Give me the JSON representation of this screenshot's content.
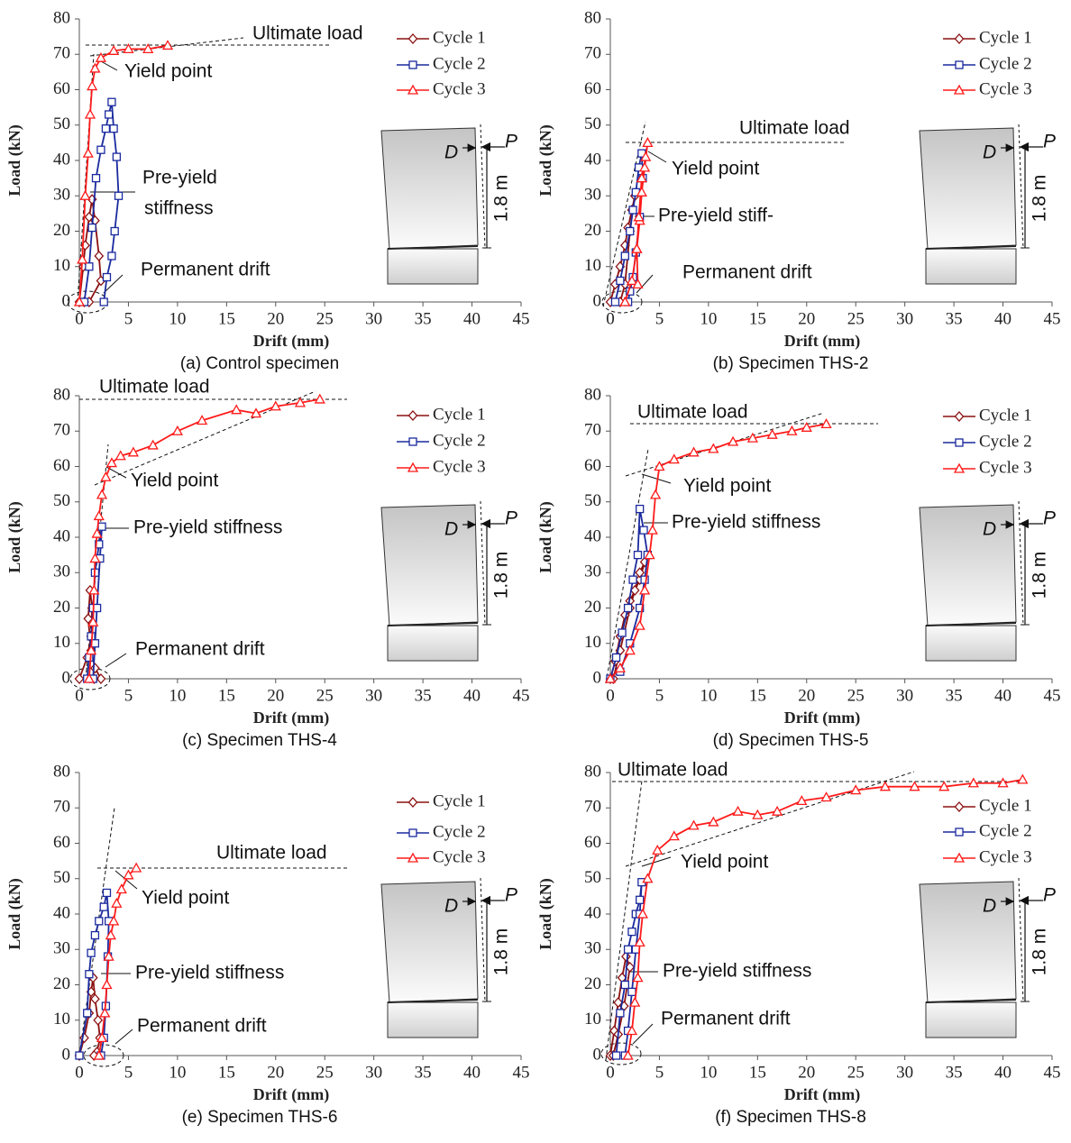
{
  "chart_data": [
    {
      "type": "line",
      "caption": "(a) Control specimen",
      "xlabel": "Drift (mm)",
      "ylabel": "Load (kN)",
      "xlim": [
        0,
        45
      ],
      "ylim": [
        0,
        80
      ],
      "xticks": [
        0,
        5,
        10,
        15,
        20,
        25,
        30,
        35,
        40,
        45
      ],
      "yticks": [
        0,
        10,
        20,
        30,
        40,
        50,
        60,
        70,
        80
      ],
      "series": [
        {
          "name": "Cycle 1",
          "color": "#8b1010",
          "marker": "diamond",
          "x": [
            0,
            0.4,
            0.6,
            1.0,
            1.3,
            1.6,
            2.0,
            2.2,
            1.0,
            0.5
          ],
          "values": [
            0,
            10,
            16,
            24,
            29,
            23,
            13,
            6,
            0,
            0
          ]
        },
        {
          "name": "Cycle 2",
          "color": "#1a2a9e",
          "marker": "square",
          "x": [
            0.5,
            1.0,
            1.3,
            1.7,
            2.2,
            2.7,
            3.0,
            3.3,
            3.5,
            3.8,
            4.0,
            3.6,
            3.3,
            2.8,
            2.5
          ],
          "values": [
            0,
            10,
            21,
            35,
            43,
            49,
            53,
            56.5,
            49,
            41,
            30,
            20,
            13,
            7,
            0
          ]
        },
        {
          "name": "Cycle 3",
          "color": "#ff1a1a",
          "marker": "triangle",
          "x": [
            0,
            0.3,
            0.6,
            0.9,
            1.1,
            1.3,
            1.6,
            2.2,
            3.5,
            5,
            7,
            9
          ],
          "values": [
            0,
            12,
            30,
            42,
            53,
            61,
            66,
            69,
            71,
            71.5,
            71.5,
            72.5
          ]
        }
      ],
      "annotations": [
        "Ultimate load",
        "Yield point",
        "Pre-yield",
        "stiffness",
        "Permanent drift"
      ],
      "diagram": {
        "displacement": "D",
        "load": "P",
        "height": "1.8 m"
      }
    },
    {
      "type": "line",
      "caption": "(b) Specimen THS-2",
      "xlabel": "Drift (mm)",
      "ylabel": "Load (kN)",
      "xlim": [
        0,
        45
      ],
      "ylim": [
        0,
        80
      ],
      "xticks": [
        0,
        5,
        10,
        15,
        20,
        25,
        30,
        35,
        40,
        45
      ],
      "yticks": [
        0,
        10,
        20,
        30,
        40,
        50,
        60,
        70,
        80
      ],
      "series": [
        {
          "name": "Cycle 1",
          "color": "#8b1010",
          "marker": "diamond",
          "x": [
            0,
            0.5,
            1.0,
            1.5,
            1.8,
            2.2,
            2.5,
            2.0,
            1.5,
            1.0
          ],
          "values": [
            0,
            5,
            10,
            16,
            21,
            26,
            30,
            20,
            5,
            0
          ]
        },
        {
          "name": "Cycle 2",
          "color": "#1a2a9e",
          "marker": "square",
          "x": [
            0.5,
            1.0,
            1.5,
            2.0,
            2.3,
            2.6,
            2.9,
            3.2,
            3.3,
            3.0,
            2.6,
            2.3,
            2.0,
            1.8
          ],
          "values": [
            0,
            6,
            13,
            20,
            26,
            31,
            38,
            42,
            35,
            24,
            14,
            7,
            3,
            0
          ]
        },
        {
          "name": "Cycle 3",
          "color": "#ff1a1a",
          "marker": "triangle",
          "x": [
            1.5,
            2.2,
            2.7,
            3.0,
            3.2,
            3.5,
            3.8,
            3.6,
            3.2,
            2.9,
            2.7,
            2.8
          ],
          "values": [
            0,
            6,
            15,
            23,
            31,
            38,
            45,
            41,
            35,
            24,
            15,
            5
          ]
        }
      ],
      "annotations": [
        "Ultimate load",
        "Yield point",
        "Pre-yield stiff-",
        "Permanent drift"
      ],
      "diagram": {
        "displacement": "D",
        "load": "P",
        "height": "1.8 m"
      }
    },
    {
      "type": "line",
      "caption": "(c) Specimen THS-4",
      "xlabel": "Drift (mm)",
      "ylabel": "Load (kN)",
      "xlim": [
        0,
        45
      ],
      "ylim": [
        0,
        80
      ],
      "xticks": [
        0,
        5,
        10,
        15,
        20,
        25,
        30,
        35,
        40,
        45
      ],
      "yticks": [
        0,
        10,
        20,
        30,
        40,
        50,
        60,
        70,
        80
      ],
      "series": [
        {
          "name": "Cycle 1",
          "color": "#8b1010",
          "marker": "diamond",
          "x": [
            0,
            0.8,
            1.2,
            1.3,
            1.1,
            0.9,
            1.2,
            1.6,
            2.2,
            1.5
          ],
          "values": [
            0,
            6,
            12,
            20,
            25,
            17,
            8,
            3,
            0,
            0
          ]
        },
        {
          "name": "Cycle 2",
          "color": "#1a2a9e",
          "marker": "square",
          "x": [
            0.8,
            1.0,
            1.2,
            1.4,
            1.6,
            2.0,
            2.3,
            2.1,
            1.8,
            1.6,
            1.4
          ],
          "values": [
            0,
            6,
            12,
            20,
            30,
            38,
            43,
            34,
            20,
            10,
            0
          ]
        },
        {
          "name": "Cycle 3",
          "color": "#ff1a1a",
          "marker": "triangle",
          "x": [
            1.0,
            1.2,
            1.4,
            1.5,
            1.6,
            1.8,
            2.0,
            2.3,
            2.7,
            3.3,
            4.2,
            5.5,
            7.5,
            10,
            12.5,
            16,
            18,
            20,
            22.5,
            24.5
          ],
          "values": [
            0,
            8,
            16,
            25,
            34,
            41,
            46,
            52,
            57,
            61,
            63,
            64,
            66,
            70,
            73,
            76,
            75,
            77,
            78,
            79
          ]
        }
      ],
      "annotations": [
        "Ultimate load",
        "Yield point",
        "Pre-yield stiffness",
        "Permanent drift"
      ],
      "diagram": {
        "displacement": "D",
        "load": "P",
        "height": "1.8 m"
      }
    },
    {
      "type": "line",
      "caption": "(d) Specimen THS-5",
      "xlabel": "Drift (mm)",
      "ylabel": "Load (kN)",
      "xlim": [
        0,
        45
      ],
      "ylim": [
        0,
        80
      ],
      "xticks": [
        0,
        5,
        10,
        15,
        20,
        25,
        30,
        35,
        40,
        45
      ],
      "yticks": [
        0,
        10,
        20,
        30,
        40,
        50,
        60,
        70,
        80
      ],
      "series": [
        {
          "name": "Cycle 1",
          "color": "#8b1010",
          "marker": "diamond",
          "x": [
            0,
            0.5,
            1.0,
            1.5,
            2.0,
            2.5,
            3.0,
            3.5,
            3.0,
            2.0,
            1.0,
            0.3
          ],
          "values": [
            0,
            5,
            12,
            18,
            22,
            25,
            28,
            33,
            30,
            20,
            8,
            0
          ]
        },
        {
          "name": "Cycle 2",
          "color": "#1a2a9e",
          "marker": "square",
          "x": [
            0,
            0.6,
            1.2,
            1.8,
            2.3,
            2.8,
            3.0,
            3.4,
            3.8,
            3.5,
            3.0,
            2.0,
            1.0
          ],
          "values": [
            0,
            6,
            13,
            20,
            28,
            35,
            48,
            42,
            35,
            28,
            20,
            10,
            2
          ]
        },
        {
          "name": "Cycle 3",
          "color": "#ff1a1a",
          "marker": "triangle",
          "x": [
            0,
            1,
            2,
            3,
            3.5,
            4.0,
            4.3,
            4.6,
            5.0,
            6.5,
            8.5,
            10.5,
            12.5,
            14.5,
            16.5,
            18.5,
            20,
            22
          ],
          "values": [
            0,
            3,
            8,
            15,
            25,
            35,
            42,
            52,
            60,
            62,
            64,
            65,
            67,
            68,
            69,
            70,
            71,
            72
          ]
        }
      ],
      "annotations": [
        "Ultimate load",
        "Yield point",
        "Pre-yield stiffness"
      ],
      "diagram": {
        "displacement": "D",
        "load": "P",
        "height": "1.8 m"
      }
    },
    {
      "type": "line",
      "caption": "(e) Specimen THS-6",
      "xlabel": "Drift (mm)",
      "ylabel": "Load (kN)",
      "xlim": [
        0,
        45
      ],
      "ylim": [
        0,
        80
      ],
      "xticks": [
        0,
        5,
        10,
        15,
        20,
        25,
        30,
        35,
        40,
        45
      ],
      "yticks": [
        0,
        10,
        20,
        30,
        40,
        50,
        60,
        70,
        80
      ],
      "series": [
        {
          "name": "Cycle 1",
          "color": "#8b1010",
          "marker": "diamond",
          "x": [
            0,
            0.5,
            1.0,
            1.2,
            1.4,
            1.6,
            1.9,
            2.1,
            1.8,
            1.5
          ],
          "values": [
            0,
            5,
            12,
            18,
            22,
            16,
            10,
            5,
            1,
            0
          ]
        },
        {
          "name": "Cycle 2",
          "color": "#1a2a9e",
          "marker": "square",
          "x": [
            0,
            0.8,
            1.0,
            1.2,
            1.6,
            2.0,
            2.5,
            2.8,
            3.0,
            2.9,
            2.7,
            2.5,
            2.2
          ],
          "values": [
            0,
            12,
            23,
            29,
            34,
            38,
            42,
            46,
            38,
            28,
            14,
            5,
            0
          ]
        },
        {
          "name": "Cycle 3",
          "color": "#ff1a1a",
          "marker": "triangle",
          "x": [
            2.0,
            2.3,
            2.6,
            2.8,
            3.0,
            3.2,
            3.5,
            3.8,
            4.3,
            5.0,
            5.8
          ],
          "values": [
            0,
            5,
            12,
            20,
            28,
            34,
            38,
            43,
            47,
            51,
            53
          ]
        }
      ],
      "annotations": [
        "Ultimate load",
        "Yield point",
        "Pre-yield stiffness",
        "Permanent drift"
      ],
      "diagram": {
        "displacement": "D",
        "load": "P",
        "height": "1.8 m"
      }
    },
    {
      "type": "line",
      "caption": "(f) Specimen THS-8",
      "xlabel": "Drift (mm)",
      "ylabel": "Load (kN)",
      "xlim": [
        0,
        45
      ],
      "ylim": [
        0,
        80
      ],
      "xticks": [
        0,
        5,
        10,
        15,
        20,
        25,
        30,
        35,
        40,
        45
      ],
      "yticks": [
        0,
        10,
        20,
        30,
        40,
        50,
        60,
        70,
        80
      ],
      "series": [
        {
          "name": "Cycle 1",
          "color": "#8b1010",
          "marker": "diamond",
          "x": [
            0,
            0.4,
            0.8,
            1.2,
            1.6,
            2.0,
            1.4,
            0.8,
            0.3
          ],
          "values": [
            0,
            7,
            15,
            22,
            28,
            25,
            14,
            6,
            0
          ]
        },
        {
          "name": "Cycle 2",
          "color": "#1a2a9e",
          "marker": "square",
          "x": [
            0.6,
            1.0,
            1.5,
            1.8,
            2.2,
            2.6,
            3.0,
            3.2,
            3.0,
            2.6,
            2.2,
            1.8,
            1.5
          ],
          "values": [
            0,
            12,
            20,
            30,
            35,
            40,
            44,
            49,
            40,
            30,
            18,
            7,
            0
          ]
        },
        {
          "name": "Cycle 3",
          "color": "#ff1a1a",
          "marker": "triangle",
          "x": [
            1.8,
            2.2,
            2.5,
            2.8,
            3.0,
            3.3,
            3.8,
            4.8,
            6.5,
            8.5,
            10.5,
            13,
            15,
            17,
            19.5,
            22,
            25,
            28,
            31,
            34,
            37,
            40,
            42
          ],
          "values": [
            0,
            7,
            15,
            22,
            32,
            40,
            50,
            58,
            62,
            65,
            66,
            69,
            68,
            69,
            72,
            73,
            75,
            76,
            76,
            76,
            77,
            77,
            78
          ]
        }
      ],
      "annotations": [
        "Ultimate load",
        "Yield point",
        "Pre-yield stiffness",
        "Permanent drift"
      ],
      "diagram": {
        "displacement": "D",
        "load": "P",
        "height": "1.8 m"
      }
    }
  ]
}
